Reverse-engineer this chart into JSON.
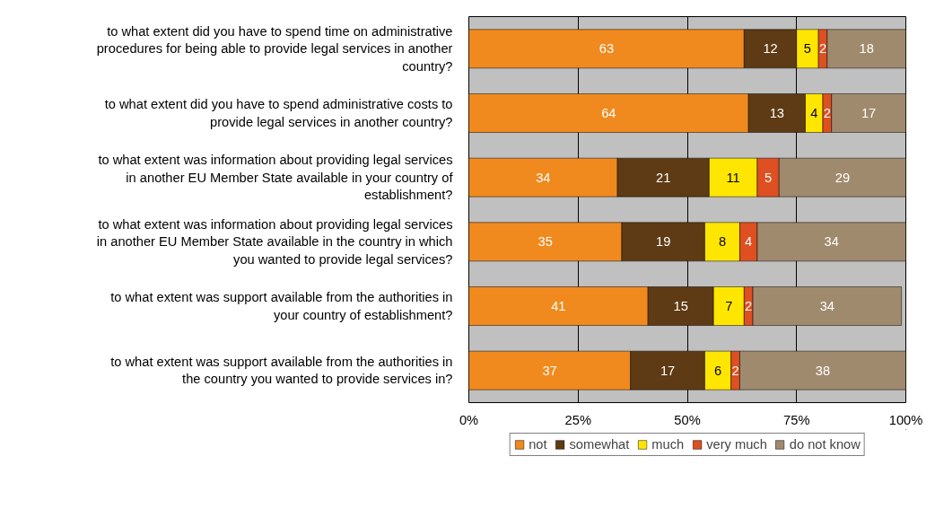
{
  "chart_data": {
    "type": "bar",
    "orientation": "horizontal",
    "stacked": true,
    "categories": [
      "to what extent did you have to spend time on administrative procedures for being able to provide legal services in another country?",
      "to what extent did you have to spend administrative costs to provide legal services in another country?",
      "to what extent was information about providing legal services in another EU Member State available in your country of establishment?",
      "to what extent was information about providing legal services in another EU Member State available in the country in which you wanted to provide legal services?",
      "to what extent was support available from the authorities in your country of establishment?",
      "to what extent was support available from the authorities in the country you wanted to provide services in?"
    ],
    "series": [
      {
        "name": "not",
        "color": "#f08a1e",
        "values": [
          63,
          64,
          34,
          35,
          41,
          37
        ]
      },
      {
        "name": "somewhat",
        "color": "#5e3b14",
        "values": [
          12,
          13,
          21,
          19,
          15,
          17
        ]
      },
      {
        "name": "much",
        "color": "#ffe600",
        "values": [
          5,
          4,
          11,
          8,
          7,
          6
        ]
      },
      {
        "name": "very much",
        "color": "#de4f22",
        "values": [
          2,
          2,
          5,
          4,
          2,
          2
        ]
      },
      {
        "name": "do not know",
        "color": "#a08a6e",
        "values": [
          18,
          17,
          29,
          34,
          34,
          38
        ]
      }
    ],
    "xlim": [
      0,
      100
    ],
    "xticks": [
      {
        "value": 0,
        "label": "0%"
      },
      {
        "value": 25,
        "label": "25%"
      },
      {
        "value": 50,
        "label": "50%"
      },
      {
        "value": 75,
        "label": "75%"
      },
      {
        "value": 100,
        "label": "100%"
      }
    ],
    "grid": "x",
    "legend": "bottom",
    "data_labels": true
  }
}
